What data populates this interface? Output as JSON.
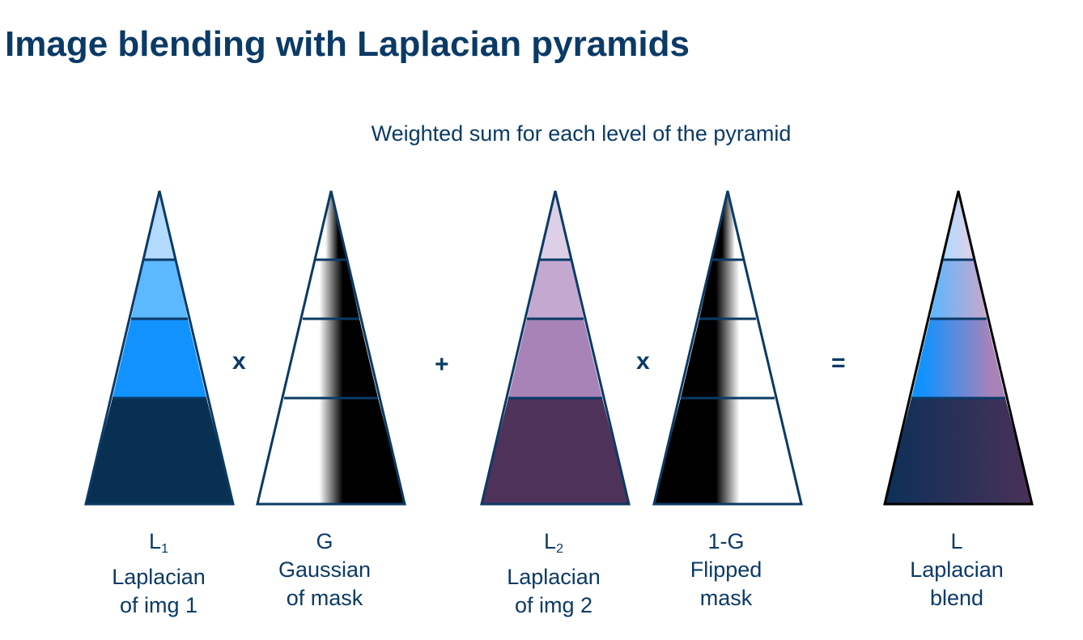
{
  "title": "Image blending with Laplacian pyramids",
  "subtitle": "Weighted sum for each level of the pyramid",
  "operators": {
    "times1": "x",
    "plus": "+",
    "times2": "x",
    "equals": "="
  },
  "pyramids": [
    {
      "symbol": "L",
      "sub": "1",
      "line1": "Laplacian",
      "line2": "of img 1"
    },
    {
      "symbol": "G",
      "sub": "",
      "line1": "Gaussian",
      "line2": "of mask"
    },
    {
      "symbol": "L",
      "sub": "2",
      "line1": "Laplacian",
      "line2": "of img 2"
    },
    {
      "symbol": "1-G",
      "sub": "",
      "line1": "Flipped",
      "line2": "mask"
    },
    {
      "symbol": "L",
      "sub": "",
      "line1": "Laplacian",
      "line2": "blend"
    }
  ],
  "colors": {
    "blue_levels": [
      "#b3daff",
      "#5cb8ff",
      "#1192ff",
      "#073052"
    ],
    "purple_levels": [
      "#ddd0e6",
      "#c4a8cf",
      "#a883b8",
      "#4f3259"
    ],
    "outline": "#0b3a66"
  }
}
